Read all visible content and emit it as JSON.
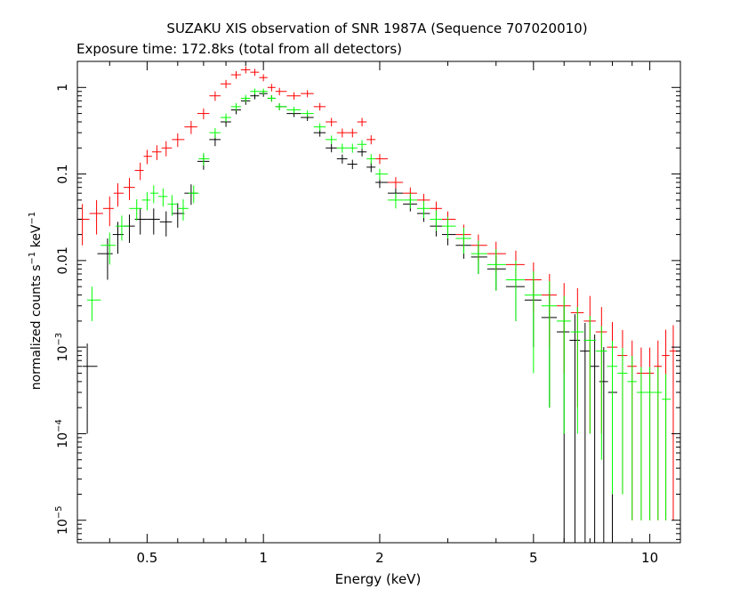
{
  "chart_data": {
    "type": "scatter",
    "title": "SUZAKU XIS observation of SNR 1987A (Sequence 707020010)",
    "subtitle": "Exposure time: 172.8ks (total from all detectors)",
    "xlabel": "Energy (keV)",
    "ylabel": "normalized counts s-1 keV-1",
    "x_scale": "log",
    "y_scale": "log",
    "xlim": [
      0.33,
      12.0
    ],
    "ylim": [
      5.5e-06,
      2.0
    ],
    "x_ticks": [
      {
        "value": 0.5,
        "label": "0.5"
      },
      {
        "value": 1,
        "label": "1"
      },
      {
        "value": 2,
        "label": "2"
      },
      {
        "value": 5,
        "label": "5"
      },
      {
        "value": 10,
        "label": "10"
      }
    ],
    "y_ticks": [
      {
        "value": 1,
        "label": "1"
      },
      {
        "value": 0.1,
        "label": "0.1"
      },
      {
        "value": 0.01,
        "label": "0.01"
      },
      {
        "value": 0.001,
        "label": "10",
        "exp": "-3"
      },
      {
        "value": 0.0001,
        "label": "10",
        "exp": "-4"
      },
      {
        "value": 1e-05,
        "label": "10",
        "exp": "-5"
      }
    ],
    "series": [
      {
        "color": "#000000",
        "x": [
          0.35,
          0.395,
          0.42,
          0.45,
          0.48,
          0.52,
          0.56,
          0.6,
          0.65,
          0.7,
          0.75,
          0.8,
          0.85,
          0.9,
          0.95,
          1.0,
          1.05,
          1.1,
          1.2,
          1.3,
          1.4,
          1.5,
          1.6,
          1.7,
          1.8,
          1.9,
          2.0,
          2.2,
          2.4,
          2.6,
          2.8,
          3.0,
          3.3,
          3.6,
          4.0,
          4.5,
          5.0,
          5.5,
          6.0,
          6.4,
          6.8,
          7.2,
          7.6,
          8.0
        ],
        "y": [
          0.0006,
          0.012,
          0.02,
          0.025,
          0.03,
          0.03,
          0.028,
          0.035,
          0.06,
          0.14,
          0.25,
          0.4,
          0.55,
          0.7,
          0.8,
          0.85,
          0.75,
          0.6,
          0.5,
          0.45,
          0.3,
          0.2,
          0.15,
          0.13,
          0.18,
          0.12,
          0.08,
          0.06,
          0.045,
          0.035,
          0.025,
          0.02,
          0.015,
          0.011,
          0.008,
          0.005,
          0.0035,
          0.0022,
          0.0015,
          0.0012,
          0.0009,
          0.0006,
          0.0004,
          0.0003
        ],
        "y_err": [
          0.0005,
          0.006,
          0.008,
          0.009,
          0.01,
          0.01,
          0.009,
          0.011,
          0.016,
          0.028,
          0.04,
          0.05,
          0.06,
          0.07,
          0.07,
          0.07,
          0.065,
          0.055,
          0.045,
          0.04,
          0.03,
          0.022,
          0.018,
          0.016,
          0.02,
          0.015,
          0.011,
          0.009,
          0.008,
          0.007,
          0.006,
          0.005,
          0.0045,
          0.004,
          0.0035,
          0.003,
          0.0025,
          0.002,
          0.0015,
          0.0012,
          0.001,
          0.0008,
          0.0006,
          0.0005
        ]
      },
      {
        "color": "#ff0000",
        "x": [
          0.34,
          0.37,
          0.4,
          0.42,
          0.45,
          0.48,
          0.5,
          0.53,
          0.56,
          0.6,
          0.65,
          0.7,
          0.75,
          0.8,
          0.85,
          0.9,
          0.95,
          1.0,
          1.05,
          1.1,
          1.2,
          1.3,
          1.4,
          1.5,
          1.6,
          1.7,
          1.8,
          1.9,
          2.0,
          2.2,
          2.4,
          2.6,
          2.8,
          3.0,
          3.3,
          3.6,
          4.0,
          4.5,
          5.0,
          5.5,
          6.0,
          6.5,
          7.0,
          7.5,
          8.0,
          8.5,
          9.0,
          9.5,
          10.0,
          10.5,
          11.0,
          11.5
        ],
        "y": [
          0.03,
          0.035,
          0.04,
          0.06,
          0.07,
          0.11,
          0.16,
          0.18,
          0.2,
          0.25,
          0.35,
          0.5,
          0.8,
          1.1,
          1.4,
          1.6,
          1.5,
          1.3,
          1.0,
          0.9,
          0.8,
          0.85,
          0.6,
          0.4,
          0.3,
          0.3,
          0.4,
          0.25,
          0.15,
          0.08,
          0.06,
          0.05,
          0.04,
          0.03,
          0.02,
          0.015,
          0.012,
          0.009,
          0.006,
          0.004,
          0.003,
          0.0025,
          0.002,
          0.0015,
          0.001,
          0.0008,
          0.0006,
          0.0005,
          0.0005,
          0.0006,
          0.0008,
          0.0009
        ],
        "y_err": [
          0.015,
          0.015,
          0.015,
          0.018,
          0.02,
          0.025,
          0.03,
          0.035,
          0.04,
          0.045,
          0.06,
          0.07,
          0.1,
          0.12,
          0.14,
          0.15,
          0.14,
          0.12,
          0.1,
          0.09,
          0.08,
          0.08,
          0.06,
          0.045,
          0.035,
          0.035,
          0.045,
          0.03,
          0.02,
          0.012,
          0.01,
          0.009,
          0.008,
          0.007,
          0.006,
          0.005,
          0.0045,
          0.004,
          0.0035,
          0.003,
          0.0025,
          0.0023,
          0.0019,
          0.0014,
          0.00095,
          0.00078,
          0.00059,
          0.00049,
          0.00049,
          0.00059,
          0.00079,
          0.00089
        ]
      },
      {
        "color": "#00ff00",
        "x": [
          0.36,
          0.4,
          0.43,
          0.47,
          0.5,
          0.52,
          0.55,
          0.58,
          0.62,
          0.66,
          0.7,
          0.75,
          0.8,
          0.85,
          0.9,
          0.95,
          1.0,
          1.05,
          1.1,
          1.2,
          1.3,
          1.4,
          1.5,
          1.6,
          1.7,
          1.8,
          1.9,
          2.0,
          2.2,
          2.4,
          2.6,
          2.8,
          3.0,
          3.3,
          3.6,
          4.0,
          4.5,
          5.0,
          5.5,
          6.0,
          6.5,
          7.0,
          7.5,
          8.0,
          8.5,
          9.0,
          9.5,
          10.0,
          10.5,
          11.0
        ],
        "y": [
          0.0035,
          0.015,
          0.025,
          0.04,
          0.05,
          0.06,
          0.055,
          0.045,
          0.04,
          0.06,
          0.15,
          0.3,
          0.45,
          0.6,
          0.75,
          0.9,
          0.9,
          0.75,
          0.6,
          0.55,
          0.5,
          0.35,
          0.25,
          0.2,
          0.2,
          0.22,
          0.15,
          0.1,
          0.05,
          0.05,
          0.04,
          0.03,
          0.025,
          0.018,
          0.012,
          0.009,
          0.006,
          0.004,
          0.003,
          0.002,
          0.0015,
          0.0012,
          0.0009,
          0.0006,
          0.0005,
          0.0004,
          0.0003,
          0.0003,
          0.0003,
          0.00025
        ],
        "y_err": [
          0.0015,
          0.006,
          0.008,
          0.011,
          0.012,
          0.014,
          0.013,
          0.012,
          0.011,
          0.014,
          0.025,
          0.04,
          0.05,
          0.06,
          0.07,
          0.07,
          0.07,
          0.06,
          0.055,
          0.05,
          0.045,
          0.035,
          0.028,
          0.024,
          0.024,
          0.026,
          0.02,
          0.015,
          0.01,
          0.01,
          0.009,
          0.008,
          0.007,
          0.006,
          0.005,
          0.0045,
          0.004,
          0.0035,
          0.0028,
          0.0019,
          0.0014,
          0.0011,
          0.00085,
          0.00058,
          0.00048,
          0.00039,
          0.00029,
          0.00029,
          0.00029,
          0.00024
        ]
      }
    ]
  }
}
